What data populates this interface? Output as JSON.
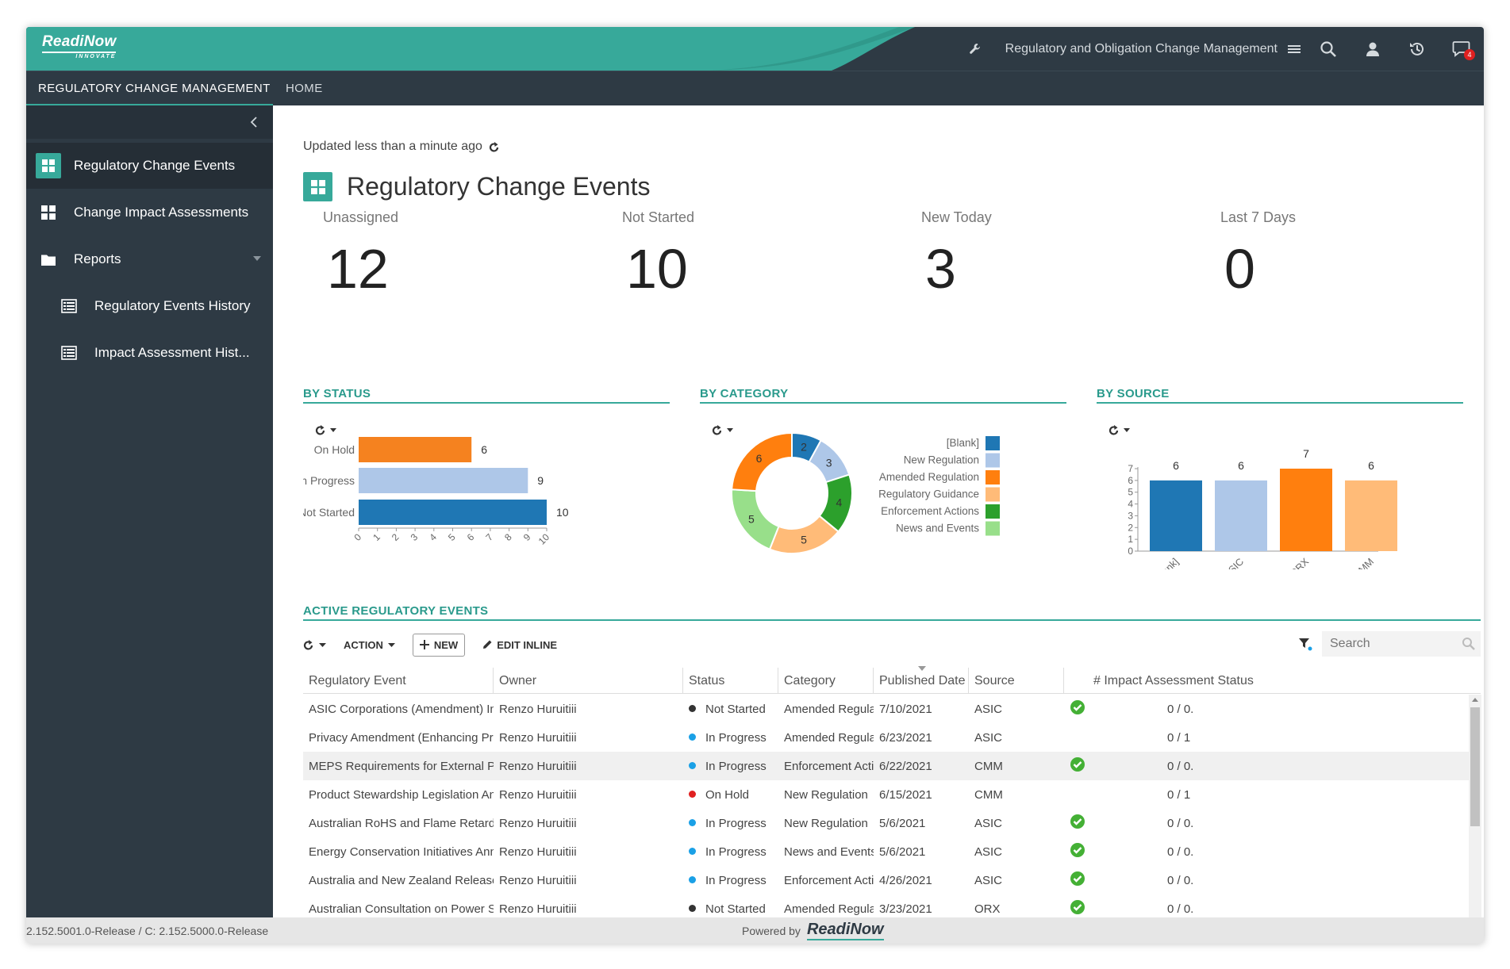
{
  "brand": {
    "logo": "ReadiNow",
    "logo_tagline": "INNOVATE",
    "accent": "#37a99a",
    "dark": "#2e3a44"
  },
  "header": {
    "app_name": "Regulatory and Obligation Change Management",
    "notification_count": "4",
    "icons": [
      "wrench-icon",
      "hamburger-icon",
      "search-icon",
      "user-icon",
      "history-icon",
      "chat-icon"
    ]
  },
  "nav": {
    "tabs": [
      {
        "label": "REGULATORY CHANGE MANAGEMENT",
        "active": true
      },
      {
        "label": "HOME",
        "active": false
      }
    ]
  },
  "sidebar": {
    "items": [
      {
        "label": "Regulatory Change Events",
        "icon": "grid-icon",
        "active": true
      },
      {
        "label": "Change Impact Assessments",
        "icon": "grid-icon",
        "active": false
      },
      {
        "label": "Reports",
        "icon": "folder-icon",
        "active": false
      },
      {
        "label": "Regulatory Events History",
        "icon": "report-icon",
        "active": false
      },
      {
        "label": "Impact Assessment Hist...",
        "icon": "report-icon",
        "active": false
      }
    ]
  },
  "main": {
    "updated": "Updated less than a minute ago",
    "title": "Regulatory Change Events",
    "kpis": [
      {
        "label": "Unassigned",
        "value": "12"
      },
      {
        "label": "Not Started",
        "value": "10"
      },
      {
        "label": "New Today",
        "value": "3"
      },
      {
        "label": "Last 7 Days",
        "value": "0"
      }
    ]
  },
  "chart_data": [
    {
      "type": "bar",
      "orientation": "horizontal",
      "title": "BY STATUS",
      "categories": [
        "On Hold",
        "In Progress",
        "Not Started"
      ],
      "values": [
        6,
        9,
        10
      ],
      "colors": [
        "#f5821f",
        "#aec7e8",
        "#1f77b4"
      ],
      "xlim": [
        0,
        10
      ],
      "xticks": [
        "0",
        "1",
        "2",
        "3",
        "4",
        "5",
        "6",
        "7",
        "8",
        "9",
        "10"
      ]
    },
    {
      "type": "pie",
      "title": "BY CATEGORY",
      "donut": true,
      "legend": "right",
      "categories": [
        "[Blank]",
        "New Regulation",
        "Amended Regulation",
        "Regulatory Guidance",
        "Enforcement Actions",
        "News and Events"
      ],
      "values": [
        2,
        3,
        4,
        5,
        5,
        6
      ],
      "slice_order": [
        "[Blank]",
        "New Regulation",
        "Enforcement Actions",
        "Regulatory Guidance",
        "News and Events",
        "Amended Regulation"
      ],
      "slice_values": [
        2,
        3,
        4,
        5,
        5,
        6
      ],
      "slice_colors": [
        "#1f77b4",
        "#aec7e8",
        "#2ca02c",
        "#ffbb78",
        "#98df8a",
        "#ff7f0e"
      ],
      "colors": [
        "#1f77b4",
        "#aec7e8",
        "#ff7f0e",
        "#ffbb78",
        "#2ca02c",
        "#98df8a"
      ]
    },
    {
      "type": "bar",
      "title": "BY SOURCE",
      "categories": [
        "[Blank]",
        "ASIC",
        "ORX",
        "CMM"
      ],
      "values": [
        6,
        6,
        7,
        6
      ],
      "colors": [
        "#1f77b4",
        "#aec7e8",
        "#ff7f0e",
        "#ffbb78"
      ],
      "ylim": [
        0,
        7
      ],
      "yticks": [
        "0",
        "1",
        "2",
        "3",
        "4",
        "5",
        "6",
        "7"
      ]
    }
  ],
  "table": {
    "section_title": "ACTIVE REGULATORY EVENTS",
    "toolbar": {
      "action": "ACTION",
      "new": "NEW",
      "edit_inline": "EDIT INLINE",
      "search_placeholder": "Search"
    },
    "columns": [
      "Regulatory Event",
      "Owner",
      "Status",
      "Category",
      "Published Date",
      "Source",
      "# Impact Assessment Status"
    ],
    "status_colors": {
      "Not Started": "#333333",
      "In Progress": "#1aa0e6",
      "On Hold": "#e02020"
    },
    "rows": [
      {
        "event": "ASIC Corporations (Amendment) Instru...",
        "owner": "Renzo Huruitiii",
        "status": "Not Started",
        "category": "Amended Regula...",
        "date": "7/10/2021",
        "source": "ASIC",
        "check": true,
        "ia": "0 / 0."
      },
      {
        "event": "Privacy Amendment (Enhancing Privac...",
        "owner": "Renzo Huruitiii",
        "status": "In Progress",
        "category": "Amended Regula...",
        "date": "6/23/2021",
        "source": "ASIC",
        "check": false,
        "ia": "0 / 1"
      },
      {
        "event": "MEPS Requirements for External Power...",
        "owner": "Renzo Huruitiii",
        "status": "In Progress",
        "category": "Enforcement Acti...",
        "date": "6/22/2021",
        "source": "CMM",
        "check": true,
        "ia": "0 / 0."
      },
      {
        "event": "Product Stewardship Legislation Anno...",
        "owner": "Renzo Huruitiii",
        "status": "On Hold",
        "category": "New Regulation",
        "date": "6/15/2021",
        "source": "CMM",
        "check": false,
        "ia": "0 / 1"
      },
      {
        "event": "Australian RoHS and Flame Retardant ...",
        "owner": "Renzo Huruitiii",
        "status": "In Progress",
        "category": "New Regulation",
        "date": "5/6/2021",
        "source": "ASIC",
        "check": true,
        "ia": "0 / 0."
      },
      {
        "event": "Energy Conservation Initiatives Annou...",
        "owner": "Renzo Huruitiii",
        "status": "In Progress",
        "category": "News and Events",
        "date": "5/6/2021",
        "source": "ASIC",
        "check": true,
        "ia": "0 / 0."
      },
      {
        "event": "Australia and New Zealand Release Co...",
        "owner": "Renzo Huruitiii",
        "status": "In Progress",
        "category": "Enforcement Acti...",
        "date": "4/26/2021",
        "source": "ASIC",
        "check": true,
        "ia": "0 / 0."
      },
      {
        "event": "Australian Consultation on Power Supp...",
        "owner": "Renzo Huruitiii",
        "status": "Not Started",
        "category": "Amended Regula...",
        "date": "3/23/2021",
        "source": "ORX",
        "check": true,
        "ia": "0 / 0."
      }
    ]
  },
  "footer": {
    "version": "2.152.5001.0-Release / C: 2.152.5000.0-Release",
    "powered_by": "Powered by",
    "powered_logo": "ReadiNow"
  }
}
